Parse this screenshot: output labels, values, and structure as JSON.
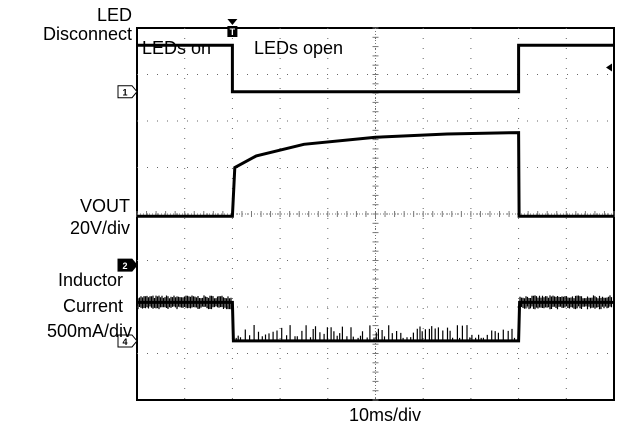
{
  "chart_data": {
    "type": "line",
    "xlabel": "10ms/div",
    "x_divisions": 10,
    "y_divisions": 8,
    "x_unit": "ms",
    "time_per_div_ms": 10,
    "grid": true,
    "annotations": [
      {
        "text": "LEDs on",
        "x_ms": 0.5
      },
      {
        "text": "LEDs open",
        "x_ms": 24
      }
    ],
    "trigger_marker": {
      "label": "T",
      "x_ms": 20
    },
    "series": [
      {
        "name": "LED Disconnect",
        "channel_marker": "1",
        "label_lines": [
          "LED",
          "Disconnect"
        ],
        "color": "#000000",
        "ground_div": 6.63,
        "points": [
          [
            0,
            7.63
          ],
          [
            20,
            7.63
          ],
          [
            20,
            6.63
          ],
          [
            80,
            6.63
          ],
          [
            80,
            7.63
          ],
          [
            100,
            7.63
          ]
        ]
      },
      {
        "name": "VOUT",
        "channel_marker": "2",
        "label_lines": [
          "VOUT",
          "20V/div"
        ],
        "color": "#000000",
        "ground_div": 2.9,
        "points": [
          [
            0,
            3.95
          ],
          [
            20,
            3.95
          ],
          [
            20.5,
            5.0
          ],
          [
            25,
            5.25
          ],
          [
            35,
            5.5
          ],
          [
            50,
            5.65
          ],
          [
            65,
            5.72
          ],
          [
            80,
            5.75
          ],
          [
            80.1,
            3.95
          ],
          [
            100,
            3.95
          ]
        ]
      },
      {
        "name": "Inductor Current",
        "channel_marker": "4",
        "label_lines": [
          "Inductor",
          "Current",
          "500mA/div"
        ],
        "color": "#000000",
        "ground_div": 1.27,
        "points": [
          [
            0,
            2.1
          ],
          [
            20,
            2.1
          ],
          [
            20.2,
            1.27
          ],
          [
            80,
            1.27
          ],
          [
            80.2,
            2.1
          ],
          [
            100,
            2.1
          ]
        ]
      }
    ]
  }
}
